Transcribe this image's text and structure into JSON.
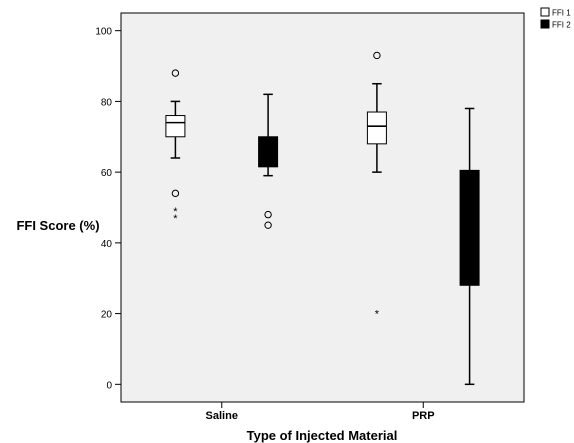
{
  "chart_data": {
    "type": "boxplot",
    "xlabel": "Type of Injected Material",
    "ylabel": "FFI Score (%)",
    "ylim": [
      -5,
      105
    ],
    "yticks": [
      0,
      20,
      40,
      60,
      80,
      100
    ],
    "categories": [
      "Saline",
      "PRP"
    ],
    "legend": {
      "placement": "top-right",
      "items": [
        "FFI 1",
        "FFI 2"
      ]
    },
    "series": [
      {
        "name": "FFI 1",
        "color": "#ffffff",
        "boxes": [
          {
            "category": "Saline",
            "whisker_low": 64,
            "q1": 70,
            "median": 74,
            "q3": 76,
            "whisker_high": 80,
            "outliers": [
              88,
              54
            ],
            "extremes": [
              49,
              47
            ]
          },
          {
            "category": "PRP",
            "whisker_low": 60,
            "q1": 68,
            "median": 73,
            "q3": 77,
            "whisker_high": 85,
            "outliers": [
              93
            ],
            "extremes": [
              20
            ]
          }
        ]
      },
      {
        "name": "FFI 2",
        "color": "#000000",
        "boxes": [
          {
            "category": "Saline",
            "whisker_low": 59,
            "q1": 61.5,
            "median": 62,
            "q3": 70,
            "whisker_high": 82,
            "outliers": [
              48,
              45
            ],
            "extremes": []
          },
          {
            "category": "PRP",
            "whisker_low": 0,
            "q1": 28,
            "median": 29,
            "q3": 60.5,
            "whisker_high": 78,
            "outliers": [],
            "extremes": []
          }
        ]
      }
    ]
  }
}
